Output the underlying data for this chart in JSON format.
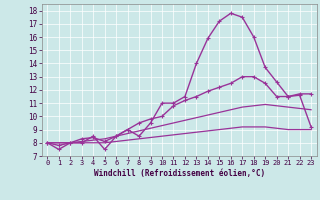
{
  "xlabel": "Windchill (Refroidissement éolien,°C)",
  "background_color": "#cce8e8",
  "line_color": "#993399",
  "xlim": [
    -0.5,
    23.5
  ],
  "ylim": [
    7,
    18.5
  ],
  "yticks": [
    7,
    8,
    9,
    10,
    11,
    12,
    13,
    14,
    15,
    16,
    17,
    18
  ],
  "xticks": [
    0,
    1,
    2,
    3,
    4,
    5,
    6,
    7,
    8,
    9,
    10,
    11,
    12,
    13,
    14,
    15,
    16,
    17,
    18,
    19,
    20,
    21,
    22,
    23
  ],
  "series": [
    {
      "x": [
        0,
        1,
        2,
        3,
        4,
        5,
        6,
        7,
        8,
        9,
        10,
        11,
        12,
        13,
        14,
        15,
        16,
        17,
        18,
        19,
        20,
        21,
        22,
        23
      ],
      "y": [
        8.0,
        7.5,
        8.0,
        8.0,
        8.5,
        7.5,
        8.5,
        9.0,
        8.5,
        9.5,
        11.0,
        11.0,
        11.5,
        14.0,
        15.9,
        17.2,
        17.8,
        17.5,
        16.0,
        13.7,
        12.6,
        11.5,
        11.7,
        11.7
      ],
      "marker": true,
      "linewidth": 1.0
    },
    {
      "x": [
        0,
        1,
        2,
        3,
        4,
        5,
        6,
        7,
        8,
        9,
        10,
        11,
        12,
        13,
        14,
        15,
        16,
        17,
        18,
        19,
        20,
        21,
        22,
        23
      ],
      "y": [
        8.0,
        7.8,
        8.0,
        8.3,
        8.4,
        8.1,
        8.5,
        9.0,
        9.5,
        9.8,
        10.0,
        10.8,
        11.2,
        11.5,
        11.9,
        12.2,
        12.5,
        13.0,
        13.0,
        12.5,
        11.5,
        11.5,
        11.6,
        9.2
      ],
      "marker": true,
      "linewidth": 1.0
    },
    {
      "x": [
        0,
        1,
        2,
        3,
        4,
        5,
        6,
        7,
        8,
        9,
        10,
        11,
        12,
        13,
        14,
        15,
        16,
        17,
        18,
        19,
        20,
        21,
        22,
        23
      ],
      "y": [
        8.0,
        8.0,
        8.0,
        8.1,
        8.2,
        8.3,
        8.5,
        8.7,
        8.9,
        9.1,
        9.3,
        9.5,
        9.7,
        9.9,
        10.1,
        10.3,
        10.5,
        10.7,
        10.8,
        10.9,
        10.8,
        10.7,
        10.6,
        10.5
      ],
      "marker": false,
      "linewidth": 0.9
    },
    {
      "x": [
        0,
        1,
        2,
        3,
        4,
        5,
        6,
        7,
        8,
        9,
        10,
        11,
        12,
        13,
        14,
        15,
        16,
        17,
        18,
        19,
        20,
        21,
        22,
        23
      ],
      "y": [
        8.0,
        8.0,
        8.0,
        8.0,
        8.0,
        8.0,
        8.1,
        8.2,
        8.3,
        8.4,
        8.5,
        8.6,
        8.7,
        8.8,
        8.9,
        9.0,
        9.1,
        9.2,
        9.2,
        9.2,
        9.1,
        9.0,
        9.0,
        9.0
      ],
      "marker": false,
      "linewidth": 0.9
    }
  ]
}
